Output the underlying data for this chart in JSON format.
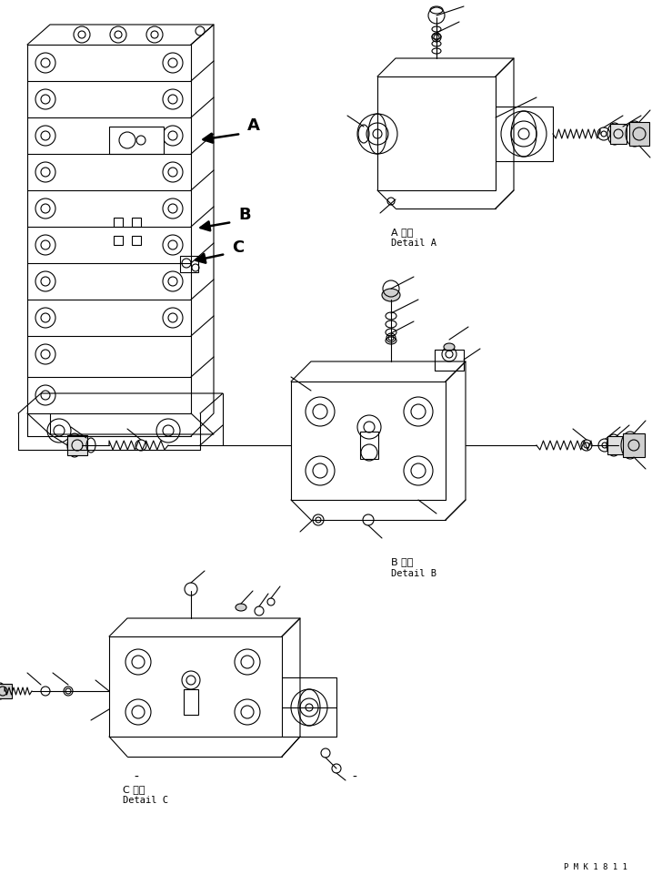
{
  "bg_color": "#ffffff",
  "fig_width": 7.28,
  "fig_height": 9.62,
  "dpi": 100,
  "watermark": "P M K 1 8 1 1",
  "label_A_jp": "A 詳細",
  "label_A_en": "Detail A",
  "label_B_jp": "B 詳細",
  "label_B_en": "Detail B",
  "label_C_jp": "C 詳細",
  "label_C_en": "Detail C",
  "arrow_A_label": "A",
  "arrow_B_label": "B",
  "arrow_C_label": "C",
  "line_color": "#000000",
  "line_width": 0.8
}
